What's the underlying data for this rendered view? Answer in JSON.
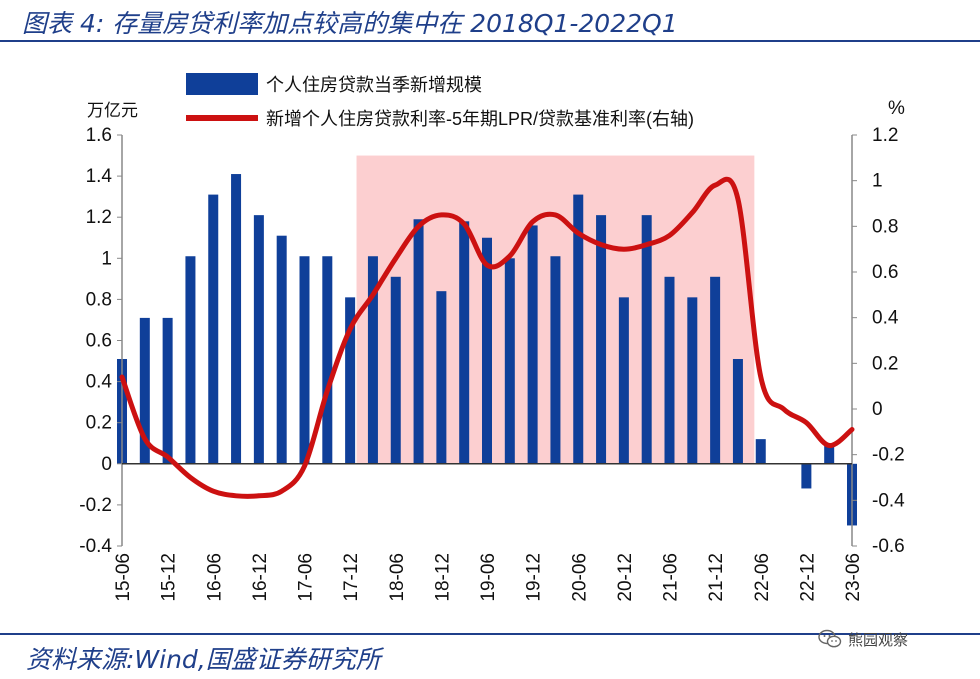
{
  "header": {
    "title": "图表 4:  存量房贷利率加点较高的集中在 2018Q1-2022Q1"
  },
  "footer": {
    "source": "资料来源:Wind,国盛证券研究所"
  },
  "watermark": {
    "text": "熊园观察",
    "icon": "wechat-icon"
  },
  "colors": {
    "bar": "#0f3f99",
    "line": "#cc1111",
    "highlight": "#fccfd0",
    "title": "#1f3f8a",
    "axis": "#888888"
  },
  "chart_data": {
    "type": "bar+line",
    "categories": [
      "15-06",
      "15-09",
      "15-12",
      "16-03",
      "16-06",
      "16-09",
      "16-12",
      "17-03",
      "17-06",
      "17-09",
      "17-12",
      "18-03",
      "18-06",
      "18-09",
      "18-12",
      "19-03",
      "19-06",
      "19-09",
      "19-12",
      "20-03",
      "20-06",
      "20-09",
      "20-12",
      "21-03",
      "21-06",
      "21-09",
      "21-12",
      "22-03",
      "22-06",
      "22-09",
      "22-12",
      "23-03",
      "23-06"
    ],
    "x_tick_labels": [
      "15-06",
      "15-12",
      "16-06",
      "16-12",
      "17-06",
      "17-12",
      "18-06",
      "18-12",
      "19-06",
      "19-12",
      "20-06",
      "20-12",
      "21-06",
      "21-12",
      "22-06",
      "22-12",
      "23-06"
    ],
    "series": [
      {
        "name": "个人住房贷款当季新增规模",
        "type": "bar",
        "axis": "left",
        "values": [
          0.51,
          0.71,
          0.71,
          1.01,
          1.31,
          1.41,
          1.21,
          1.11,
          1.01,
          1.01,
          0.81,
          1.01,
          0.91,
          1.19,
          0.84,
          1.18,
          1.1,
          1.0,
          1.16,
          1.01,
          1.31,
          1.21,
          0.81,
          1.21,
          0.91,
          0.81,
          0.91,
          0.51,
          0.12,
          0.0,
          -0.12,
          0.1,
          -0.3
        ]
      },
      {
        "name": "新增个人住房贷款利率-5年期LPR/贷款基准利率(右轴)",
        "type": "line",
        "axis": "right",
        "values": [
          0.14,
          -0.13,
          -0.21,
          -0.3,
          -0.36,
          -0.38,
          -0.38,
          -0.36,
          -0.25,
          0.08,
          0.35,
          0.5,
          0.66,
          0.8,
          0.85,
          0.81,
          0.63,
          0.67,
          0.82,
          0.85,
          0.77,
          0.72,
          0.7,
          0.72,
          0.76,
          0.86,
          0.98,
          0.92,
          0.14,
          0.0,
          -0.06,
          -0.16,
          -0.09
        ]
      }
    ],
    "left_axis": {
      "unit": "万亿元",
      "ylim": [
        -0.4,
        1.6
      ],
      "ticks": [
        "-0.4",
        "-0.2",
        "0",
        "0.2",
        "0.4",
        "0.6",
        "0.8",
        "1",
        "1.2",
        "1.4",
        "1.6"
      ]
    },
    "right_axis": {
      "unit": "%",
      "ylim": [
        -0.6,
        1.2
      ],
      "ticks": [
        "-0.6",
        "-0.4",
        "-0.2",
        "0",
        "0.2",
        "0.4",
        "0.6",
        "0.8",
        "1",
        "1.2"
      ]
    },
    "highlight": {
      "from": "18-03",
      "to": "22-03"
    },
    "legend_position": "top-left",
    "grid": false
  }
}
